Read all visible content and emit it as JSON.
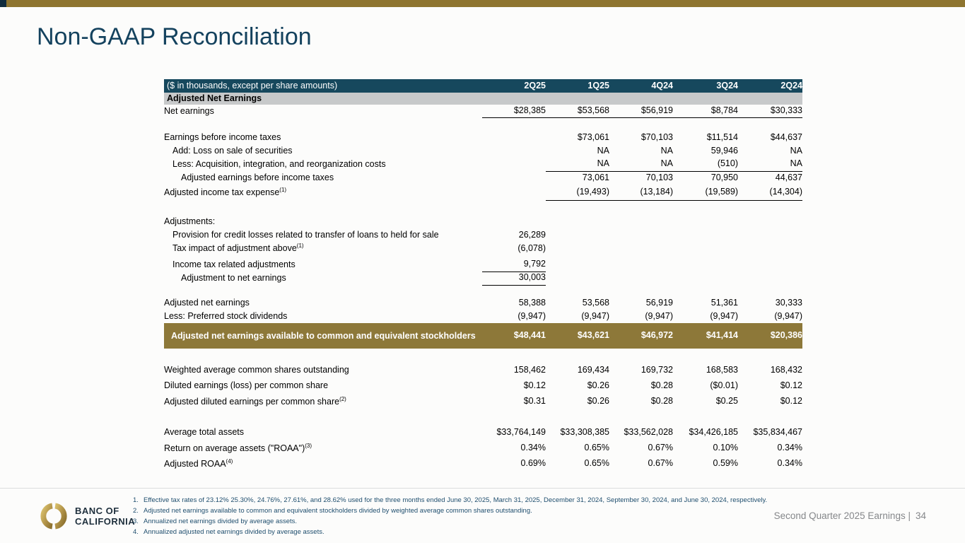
{
  "slide": {
    "title": "Non-GAAP Reconciliation",
    "accent_gold": "#8E7530",
    "accent_navy": "#16485D",
    "highlight_gold": "#8D7839"
  },
  "logo": {
    "line1": "BANC OF",
    "line2": "CALIFORNIA"
  },
  "table": {
    "unit_label": "($ in thousands, except per share amounts)",
    "columns": [
      "2Q25",
      "1Q25",
      "4Q24",
      "3Q24",
      "2Q24"
    ],
    "section_header": "Adjusted Net Earnings",
    "rows": [
      {
        "kind": "row",
        "label": "Net earnings",
        "indent": 0,
        "values": [
          "$28,385",
          "$53,568",
          "$56,919",
          "$8,784",
          "$30,333"
        ],
        "rule": "all"
      },
      {
        "kind": "spacer",
        "size": "sp18"
      },
      {
        "kind": "row",
        "label": "Earnings before income taxes",
        "indent": 0,
        "values": [
          "",
          "$73,061",
          "$70,103",
          "$11,514",
          "$44,637"
        ]
      },
      {
        "kind": "row",
        "label": "Add: Loss on sale of securities",
        "indent": 1,
        "values": [
          "",
          "NA",
          "NA",
          "59,946",
          "NA"
        ]
      },
      {
        "kind": "row",
        "label": "Less: Acquisition, integration, and reorganization costs",
        "indent": 1,
        "values": [
          "",
          "NA",
          "NA",
          "(510)",
          "NA"
        ],
        "rule": "last4"
      },
      {
        "kind": "row",
        "label": "Adjusted earnings before income taxes",
        "indent": 2,
        "values": [
          "",
          "73,061",
          "70,103",
          "70,950",
          "44,637"
        ]
      },
      {
        "kind": "row",
        "label": "Adjusted income tax expense",
        "sup": "(1)",
        "indent": 0,
        "values": [
          "",
          "(19,493)",
          "(13,184)",
          "(19,589)",
          "(14,304)"
        ],
        "rule": "last4",
        "tall": true
      },
      {
        "kind": "spacer",
        "size": "sp21"
      },
      {
        "kind": "row",
        "label": "Adjustments:",
        "indent": 0,
        "values": [
          "",
          "",
          "",
          "",
          ""
        ]
      },
      {
        "kind": "row",
        "label": "Provision for credit losses related to transfer of loans to held for sale",
        "indent": 1,
        "values": [
          "26,289",
          "",
          "",
          "",
          ""
        ]
      },
      {
        "kind": "row",
        "label": "Tax impact of adjustment above",
        "sup": "(1)",
        "indent": 1,
        "values": [
          "(6,078)",
          "",
          "",
          "",
          ""
        ]
      },
      {
        "kind": "row",
        "label": "Income tax related adjustments",
        "indent": 1,
        "values": [
          "9,792",
          "",
          "",
          "",
          ""
        ],
        "rule": "first",
        "gap": true
      },
      {
        "kind": "row",
        "label": "Adjustment to net earnings",
        "indent": 2,
        "values": [
          "30,003",
          "",
          "",
          "",
          ""
        ],
        "rule": "first"
      },
      {
        "kind": "spacer",
        "size": "sp16"
      },
      {
        "kind": "row",
        "label": "Adjusted net earnings",
        "indent": 0,
        "values": [
          "58,388",
          "53,568",
          "56,919",
          "51,361",
          "30,333"
        ]
      },
      {
        "kind": "row",
        "label": "Less: Preferred stock dividends",
        "indent": 0,
        "values": [
          "(9,947)",
          "(9,947)",
          "(9,947)",
          "(9,947)",
          "(9,947)"
        ]
      },
      {
        "kind": "highlight",
        "label": "Adjusted net earnings available to common and equivalent stockholders",
        "values": [
          "$48,441",
          "$43,621",
          "$46,972",
          "$41,414",
          "$20,386"
        ]
      },
      {
        "kind": "spacer",
        "size": "sp20"
      },
      {
        "kind": "row",
        "label": "Weighted average common shares outstanding",
        "indent": 0,
        "values": [
          "158,462",
          "169,434",
          "169,732",
          "168,583",
          "168,432"
        ],
        "tall": true
      },
      {
        "kind": "row",
        "label": "Diluted earnings (loss) per common share",
        "indent": 0,
        "values": [
          "$0.12",
          "$0.26",
          "$0.28",
          "($0.01)",
          "$0.12"
        ],
        "tall": true
      },
      {
        "kind": "row",
        "label": "Adjusted diluted earnings per common share",
        "sup": "(2)",
        "indent": 0,
        "values": [
          "$0.31",
          "$0.26",
          "$0.28",
          "$0.25",
          "$0.12"
        ],
        "tall": true
      },
      {
        "kind": "spacer",
        "size": "sp22"
      },
      {
        "kind": "row",
        "label": "Average total assets",
        "indent": 0,
        "values": [
          "$33,764,149",
          "$33,308,385",
          "$33,562,028",
          "$34,426,185",
          "$35,834,467"
        ],
        "tall": true
      },
      {
        "kind": "row",
        "label": "Return on average assets (\"ROAA\")",
        "sup": "(3)",
        "indent": 0,
        "values": [
          "0.34%",
          "0.65%",
          "0.67%",
          "0.10%",
          "0.34%"
        ],
        "tall": true
      },
      {
        "kind": "row",
        "label": "Adjusted ROAA",
        "sup": "(4)",
        "indent": 0,
        "values": [
          "0.69%",
          "0.65%",
          "0.67%",
          "0.59%",
          "0.34%"
        ],
        "tall": true
      }
    ]
  },
  "footnotes": [
    {
      "num": "1.",
      "text": "Effective tax rates of 23.12% 25.30%, 24.76%, 27.61%, and 28.62% used for the three months ended June 30, 2025, March 31, 2025, December 31, 2024, September 30, 2024, and June 30, 2024, respectively."
    },
    {
      "num": "2.",
      "text": "Adjusted net earnings available to common and equivalent stockholders divided by weighted average common shares outstanding."
    },
    {
      "num": "3.",
      "text": "Annualized net earnings divided by average assets."
    },
    {
      "num": "4.",
      "text": "Annualized adjusted net earnings divided by average assets."
    }
  ],
  "footer": {
    "label": "Second Quarter 2025 Earnings |",
    "page": "34"
  }
}
